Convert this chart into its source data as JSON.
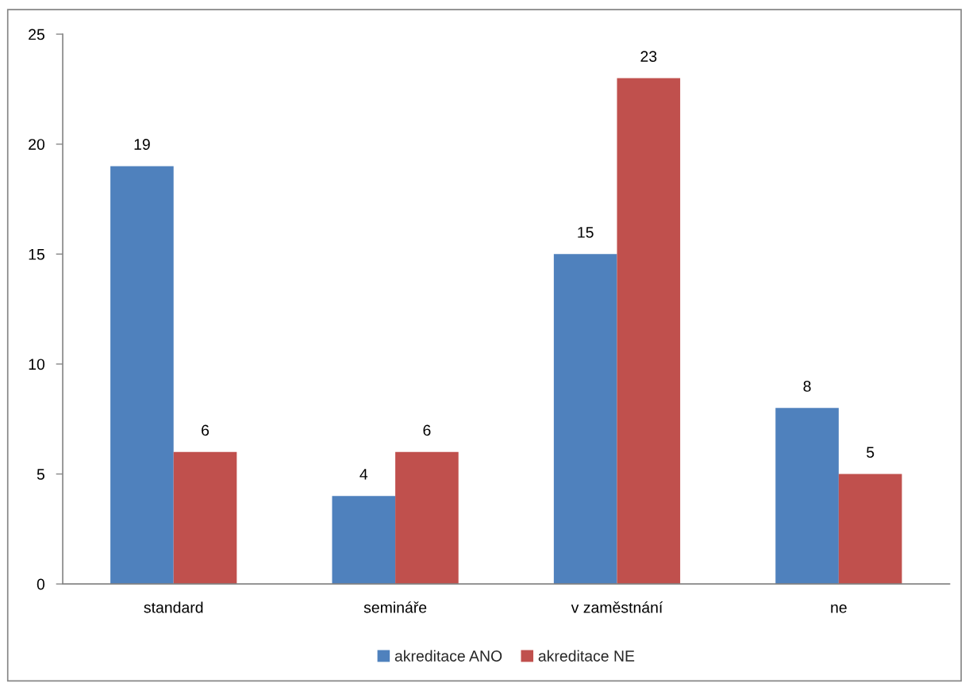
{
  "chart_data": {
    "type": "bar",
    "categories": [
      "standard",
      "semináře",
      "v zaměstnání",
      "ne"
    ],
    "series": [
      {
        "name": "akreditace ANO",
        "color": "#4f81bd",
        "values": [
          19,
          4,
          15,
          8
        ]
      },
      {
        "name": "akreditace NE",
        "color": "#c0504d",
        "values": [
          6,
          6,
          23,
          5
        ]
      }
    ],
    "ylim": [
      0,
      25
    ],
    "yticks": [
      0,
      5,
      10,
      15,
      20,
      25
    ],
    "data_labels": true,
    "legend": "bottom",
    "grid": false
  }
}
